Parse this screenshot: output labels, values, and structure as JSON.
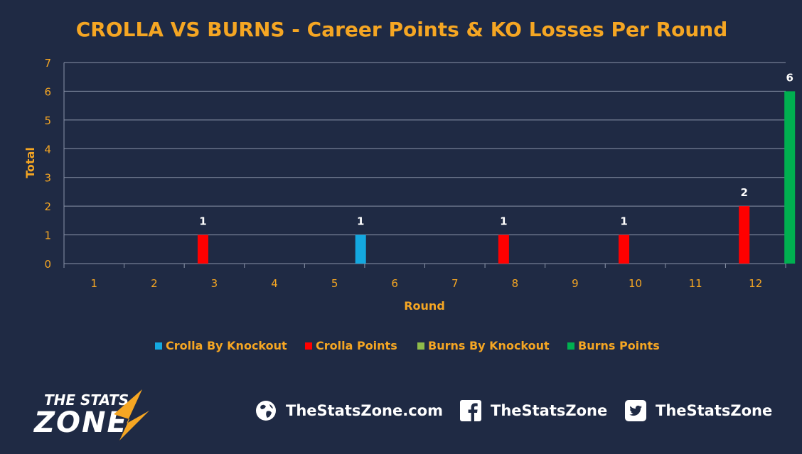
{
  "chart_data": {
    "type": "bar",
    "title": "CROLLA VS BURNS - Career Points & KO Losses Per Round",
    "xlabel": "Round",
    "ylabel": "Total",
    "ylim": [
      0,
      7
    ],
    "yticks": [
      0,
      1,
      2,
      3,
      4,
      5,
      6,
      7
    ],
    "categories": [
      "1",
      "2",
      "3",
      "4",
      "5",
      "6",
      "7",
      "8",
      "9",
      "10",
      "11",
      "12"
    ],
    "grid": true,
    "legend_position": "bottom",
    "series": [
      {
        "name": "Crolla By Knockout",
        "color": "#14a8e0",
        "values": [
          0,
          0,
          0,
          0,
          0,
          1,
          0,
          0,
          0,
          0,
          0,
          0
        ]
      },
      {
        "name": "Crolla Points",
        "color": "#ff0000",
        "values": [
          0,
          0,
          1,
          0,
          0,
          0,
          0,
          1,
          0,
          1,
          0,
          2
        ]
      },
      {
        "name": "Burns By Knockout",
        "color": "#8fbc4a",
        "values": [
          0,
          0,
          0,
          0,
          0,
          0,
          0,
          0,
          0,
          0,
          0,
          0
        ]
      },
      {
        "name": "Burns Points",
        "color": "#00b050",
        "values": [
          0,
          0,
          0,
          0,
          0,
          0,
          0,
          0,
          0,
          0,
          0,
          6
        ]
      }
    ]
  },
  "colors": {
    "background": "#1f2a44",
    "accent": "#f5a623",
    "grid": "#8a93a8",
    "text": "#ffffff"
  },
  "footer": {
    "logo_line1": "THE STATS",
    "logo_line2": "ZONE",
    "website": "TheStatsZone.com",
    "facebook": "TheStatsZone",
    "twitter": "TheStatsZone",
    "icons": [
      "globe-icon",
      "facebook-icon",
      "twitter-icon"
    ]
  }
}
